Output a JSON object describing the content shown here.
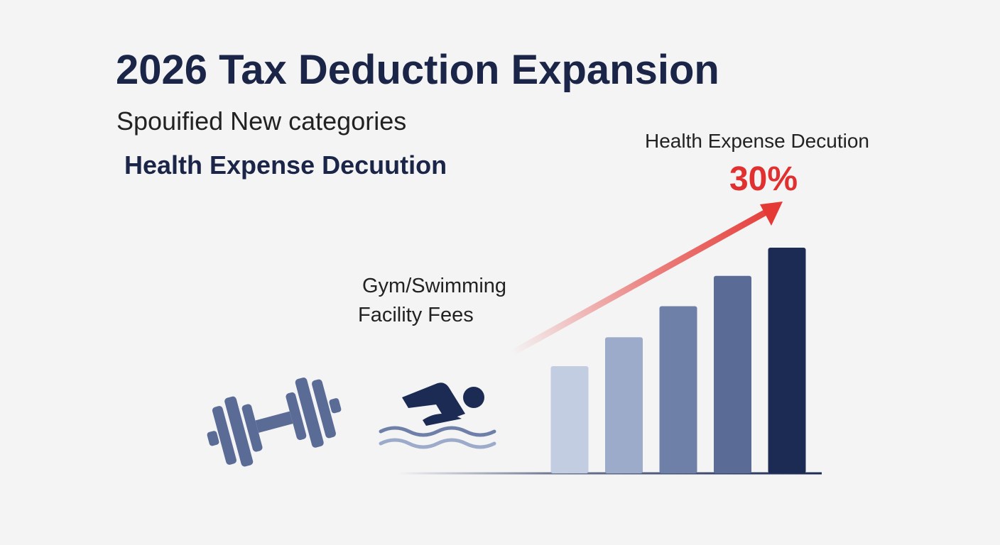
{
  "chart_data": {
    "type": "bar",
    "title": "2026 Tax Deduction Expansion",
    "subtitle": "Spouified New categories",
    "heading": "Health Expense Decuution",
    "label_lines": [
      "Gym/Swimming",
      "Facility Fees"
    ],
    "callout": "Health Expense Decution",
    "callout_value": "30%",
    "categories": [
      null,
      null,
      null,
      null,
      null
    ],
    "values": [
      15.2,
      19.3,
      23.7,
      28,
      32
    ],
    "colors": [
      "#c3cde2",
      "#9dabcb",
      "#6f80a8",
      "#5a6b96",
      "#1c2b54"
    ],
    "ylim": [
      0,
      32
    ]
  }
}
